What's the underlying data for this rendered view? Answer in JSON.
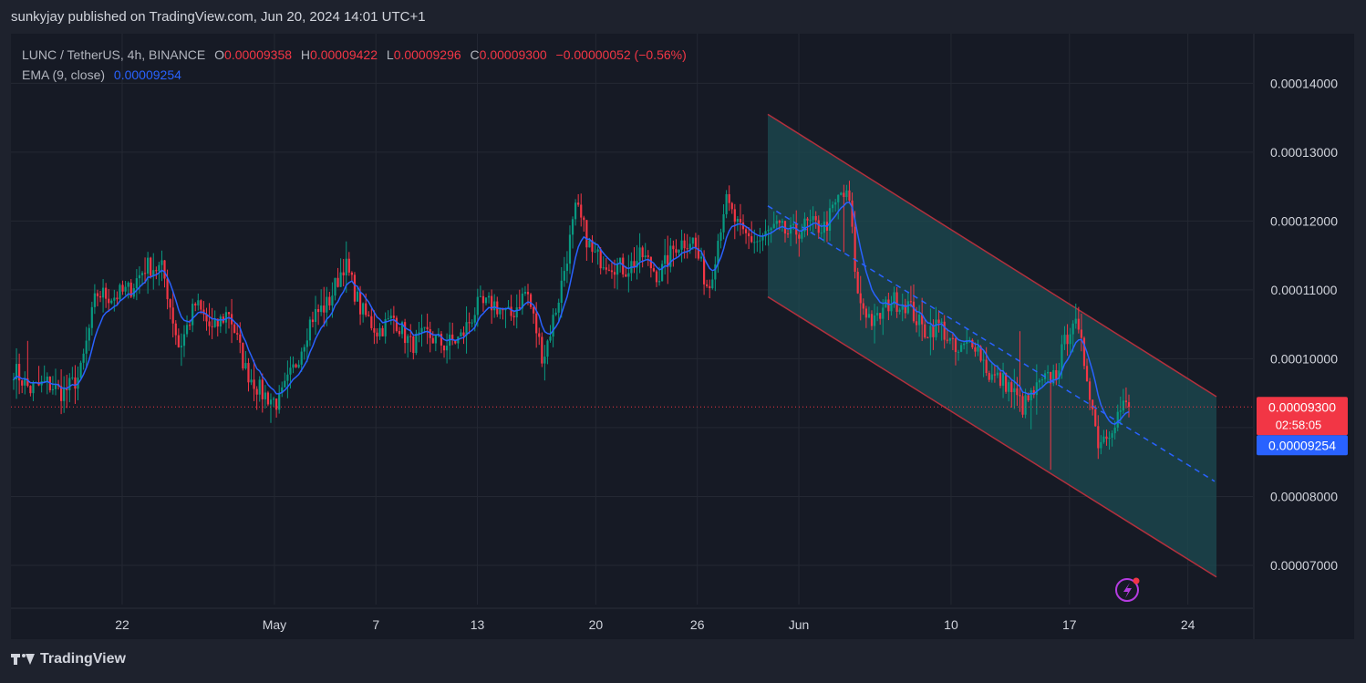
{
  "header": {
    "published": "sunkyjay published on TradingView.com, Jun 20, 2024 14:01 UTC+1"
  },
  "legend": {
    "symbol": "LUNC / TetherUS, 4h, BINANCE",
    "open_label": "O",
    "open": "0.00009358",
    "high_label": "H",
    "high": "0.00009422",
    "low_label": "L",
    "low": "0.00009296",
    "close_label": "C",
    "close": "0.00009300",
    "change": "−0.00000052 (−0.56%)",
    "ema_label": "EMA (9, close)",
    "ema_value": "0.00009254"
  },
  "price_tags": {
    "last": "0.00009300",
    "countdown": "02:58:05",
    "ema": "0.00009254"
  },
  "footer": {
    "brand": "TradingView"
  },
  "colors": {
    "up": "#089981",
    "down": "#f23645",
    "ema": "#2962ff",
    "channel_fill": "#1c4b52",
    "channel_line": "#b2303d"
  },
  "chart_data": {
    "type": "candlestick",
    "interval": "4h",
    "y_ticks": [
      "0.00014000",
      "0.00013000",
      "0.00012000",
      "0.00011000",
      "0.00010000",
      "0.00009000",
      "0.00008000",
      "0.00007000"
    ],
    "y_tick_values": [
      0.00014,
      0.00013,
      0.00012,
      0.00011,
      0.0001,
      9e-05,
      8e-05,
      7e-05
    ],
    "x_ticks": [
      "22",
      "May",
      "7",
      "13",
      "20",
      "26",
      "Jun",
      "10",
      "17",
      "24"
    ],
    "ylim": [
      6.43e-05,
      0.0001472
    ],
    "grid": true,
    "axis_side": "right",
    "close_anchors": [
      {
        "d": 0,
        "p": 9.85e-05
      },
      {
        "d": 1,
        "p": 9.55e-05
      },
      {
        "d": 2,
        "p": 9.65e-05
      },
      {
        "d": 3,
        "p": 9.5e-05
      },
      {
        "d": 4,
        "p": 9.75e-05
      },
      {
        "d": 5,
        "p": 0.0001095
      },
      {
        "d": 6,
        "p": 0.000109
      },
      {
        "d": 7,
        "p": 0.00011
      },
      {
        "d": 8,
        "p": 0.0001135
      },
      {
        "d": 9,
        "p": 0.000113
      },
      {
        "d": 10,
        "p": 0.0001015
      },
      {
        "d": 11,
        "p": 0.000108
      },
      {
        "d": 12,
        "p": 0.000104
      },
      {
        "d": 13,
        "p": 0.000107
      },
      {
        "d": 14,
        "p": 9.85e-05
      },
      {
        "d": 15,
        "p": 9.5e-05
      },
      {
        "d": 16,
        "p": 9.35e-05
      },
      {
        "d": 17,
        "p": 9.9e-05
      },
      {
        "d": 18,
        "p": 0.000106
      },
      {
        "d": 19,
        "p": 0.000108
      },
      {
        "d": 20,
        "p": 0.000114
      },
      {
        "d": 21,
        "p": 0.000107
      },
      {
        "d": 22,
        "p": 0.000104
      },
      {
        "d": 23,
        "p": 0.000106
      },
      {
        "d": 24,
        "p": 0.000102
      },
      {
        "d": 25,
        "p": 0.0001035
      },
      {
        "d": 26,
        "p": 0.000102
      },
      {
        "d": 27,
        "p": 0.000103
      },
      {
        "d": 28,
        "p": 0.0001075
      },
      {
        "d": 29,
        "p": 0.000108
      },
      {
        "d": 30,
        "p": 0.000106
      },
      {
        "d": 31,
        "p": 0.00011
      },
      {
        "d": 32,
        "p": 0.0001
      },
      {
        "d": 33,
        "p": 0.0001095
      },
      {
        "d": 34,
        "p": 0.000122
      },
      {
        "d": 35,
        "p": 0.000115
      },
      {
        "d": 36,
        "p": 0.000114
      },
      {
        "d": 37,
        "p": 0.000113
      },
      {
        "d": 38,
        "p": 0.000115
      },
      {
        "d": 39,
        "p": 0.000112
      },
      {
        "d": 40,
        "p": 0.0001165
      },
      {
        "d": 41,
        "p": 0.0001175
      },
      {
        "d": 42,
        "p": 0.00011
      },
      {
        "d": 43,
        "p": 0.000123
      },
      {
        "d": 44,
        "p": 0.000118
      },
      {
        "d": 45,
        "p": 0.000117
      },
      {
        "d": 46,
        "p": 0.000119
      },
      {
        "d": 47,
        "p": 0.000118
      },
      {
        "d": 48,
        "p": 0.0001195
      },
      {
        "d": 49,
        "p": 0.000119
      },
      {
        "d": 50,
        "p": 0.000124
      },
      {
        "d": 50.5,
        "p": 0.000123
      },
      {
        "d": 51,
        "p": 0.000109
      },
      {
        "d": 52,
        "p": 0.000105
      },
      {
        "d": 53,
        "p": 0.0001085
      },
      {
        "d": 54,
        "p": 0.000108
      },
      {
        "d": 55,
        "p": 0.000104
      },
      {
        "d": 56,
        "p": 0.000105
      },
      {
        "d": 57,
        "p": 0.0001005
      },
      {
        "d": 58,
        "p": 0.000103
      },
      {
        "d": 59,
        "p": 9.75e-05
      },
      {
        "d": 60,
        "p": 9.65e-05
      },
      {
        "d": 61,
        "p": 9.3e-05
      },
      {
        "d": 62,
        "p": 9.6e-05
      },
      {
        "d": 63,
        "p": 9.8e-05
      },
      {
        "d": 64,
        "p": 0.000106
      },
      {
        "d": 64.5,
        "p": 0.000102
      },
      {
        "d": 65,
        "p": 9.6e-05
      },
      {
        "d": 65.5,
        "p": 8.8e-05
      },
      {
        "d": 66,
        "p": 8.9e-05
      },
      {
        "d": 66.5,
        "p": 9.1e-05
      },
      {
        "d": 67,
        "p": 9.3e-05
      },
      {
        "d": 67.4,
        "p": 9.3e-05
      }
    ],
    "last_close": 9.3e-05,
    "ema_value": 9.254e-05,
    "channel": {
      "upper_start": {
        "x": "May 30",
        "y": 0.0001355
      },
      "upper_end": {
        "x": "Jun 25",
        "y": 9.45e-05
      },
      "lower_start": {
        "x": "May 30",
        "y": 0.000109
      },
      "lower_end": {
        "x": "Jun 25",
        "y": 6.83e-05
      },
      "midline_start": {
        "x": "May 30",
        "y": 0.0001222
      },
      "midline_end": {
        "x": "Jun 25",
        "y": 8.22e-05
      }
    }
  }
}
